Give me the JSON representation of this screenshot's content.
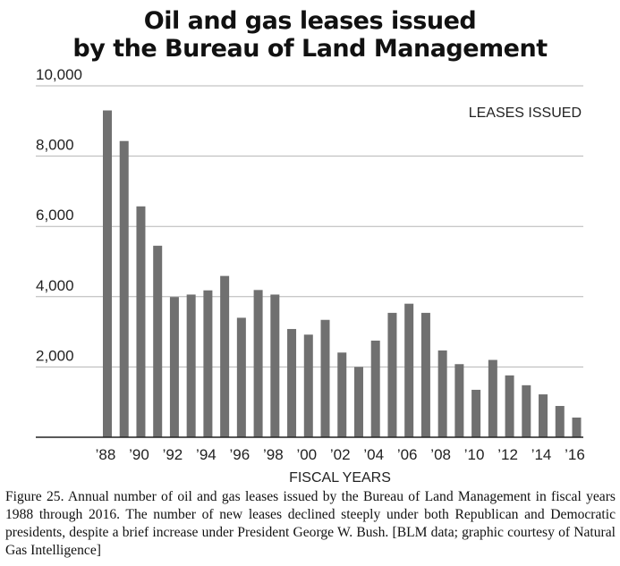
{
  "chart_data": {
    "type": "bar",
    "title_lines": [
      "Oil and gas leases issued",
      "by the Bureau of Land Management"
    ],
    "series_label": "LEASES ISSUED",
    "xlabel": "FISCAL YEARS",
    "ylabel": "",
    "ylim": [
      0,
      10000
    ],
    "yticks": [
      2000,
      4000,
      6000,
      8000,
      10000
    ],
    "ytick_labels": [
      "2,000",
      "4,000",
      "6,000",
      "8,000",
      "10,000"
    ],
    "categories": [
      "1988",
      "1989",
      "1990",
      "1991",
      "1992",
      "1993",
      "1994",
      "1995",
      "1996",
      "1997",
      "1998",
      "1999",
      "2000",
      "2001",
      "2002",
      "2003",
      "2004",
      "2005",
      "2006",
      "2007",
      "2008",
      "2009",
      "2010",
      "2011",
      "2012",
      "2013",
      "2014",
      "2015",
      "2016"
    ],
    "xtick_labels": [
      "’88",
      "",
      "’90",
      "",
      "’92",
      "",
      "’94",
      "",
      "’96",
      "",
      "’98",
      "",
      "’00",
      "",
      "’02",
      "",
      "’04",
      "",
      "’06",
      "",
      "’08",
      "",
      "’10",
      "",
      "’12",
      "",
      "’14",
      "",
      "’16"
    ],
    "values": [
      9300,
      8430,
      6570,
      5450,
      3990,
      4060,
      4180,
      4590,
      3400,
      4190,
      4060,
      3080,
      2920,
      3340,
      2410,
      2000,
      2750,
      3540,
      3800,
      3540,
      2470,
      2080,
      1350,
      2200,
      1760,
      1480,
      1220,
      890,
      560
    ],
    "grid": true,
    "bar_color": "#707070"
  },
  "caption": "Figure 25. Annual number of oil and gas leases issued by the Bureau of Land Management in fiscal years 1988 through 2016. The number of new leases declined steeply under both Republican and Democratic presidents, despite a brief increase under President George W. Bush. [BLM data; graphic courtesy of Natural Gas Intelligence]"
}
